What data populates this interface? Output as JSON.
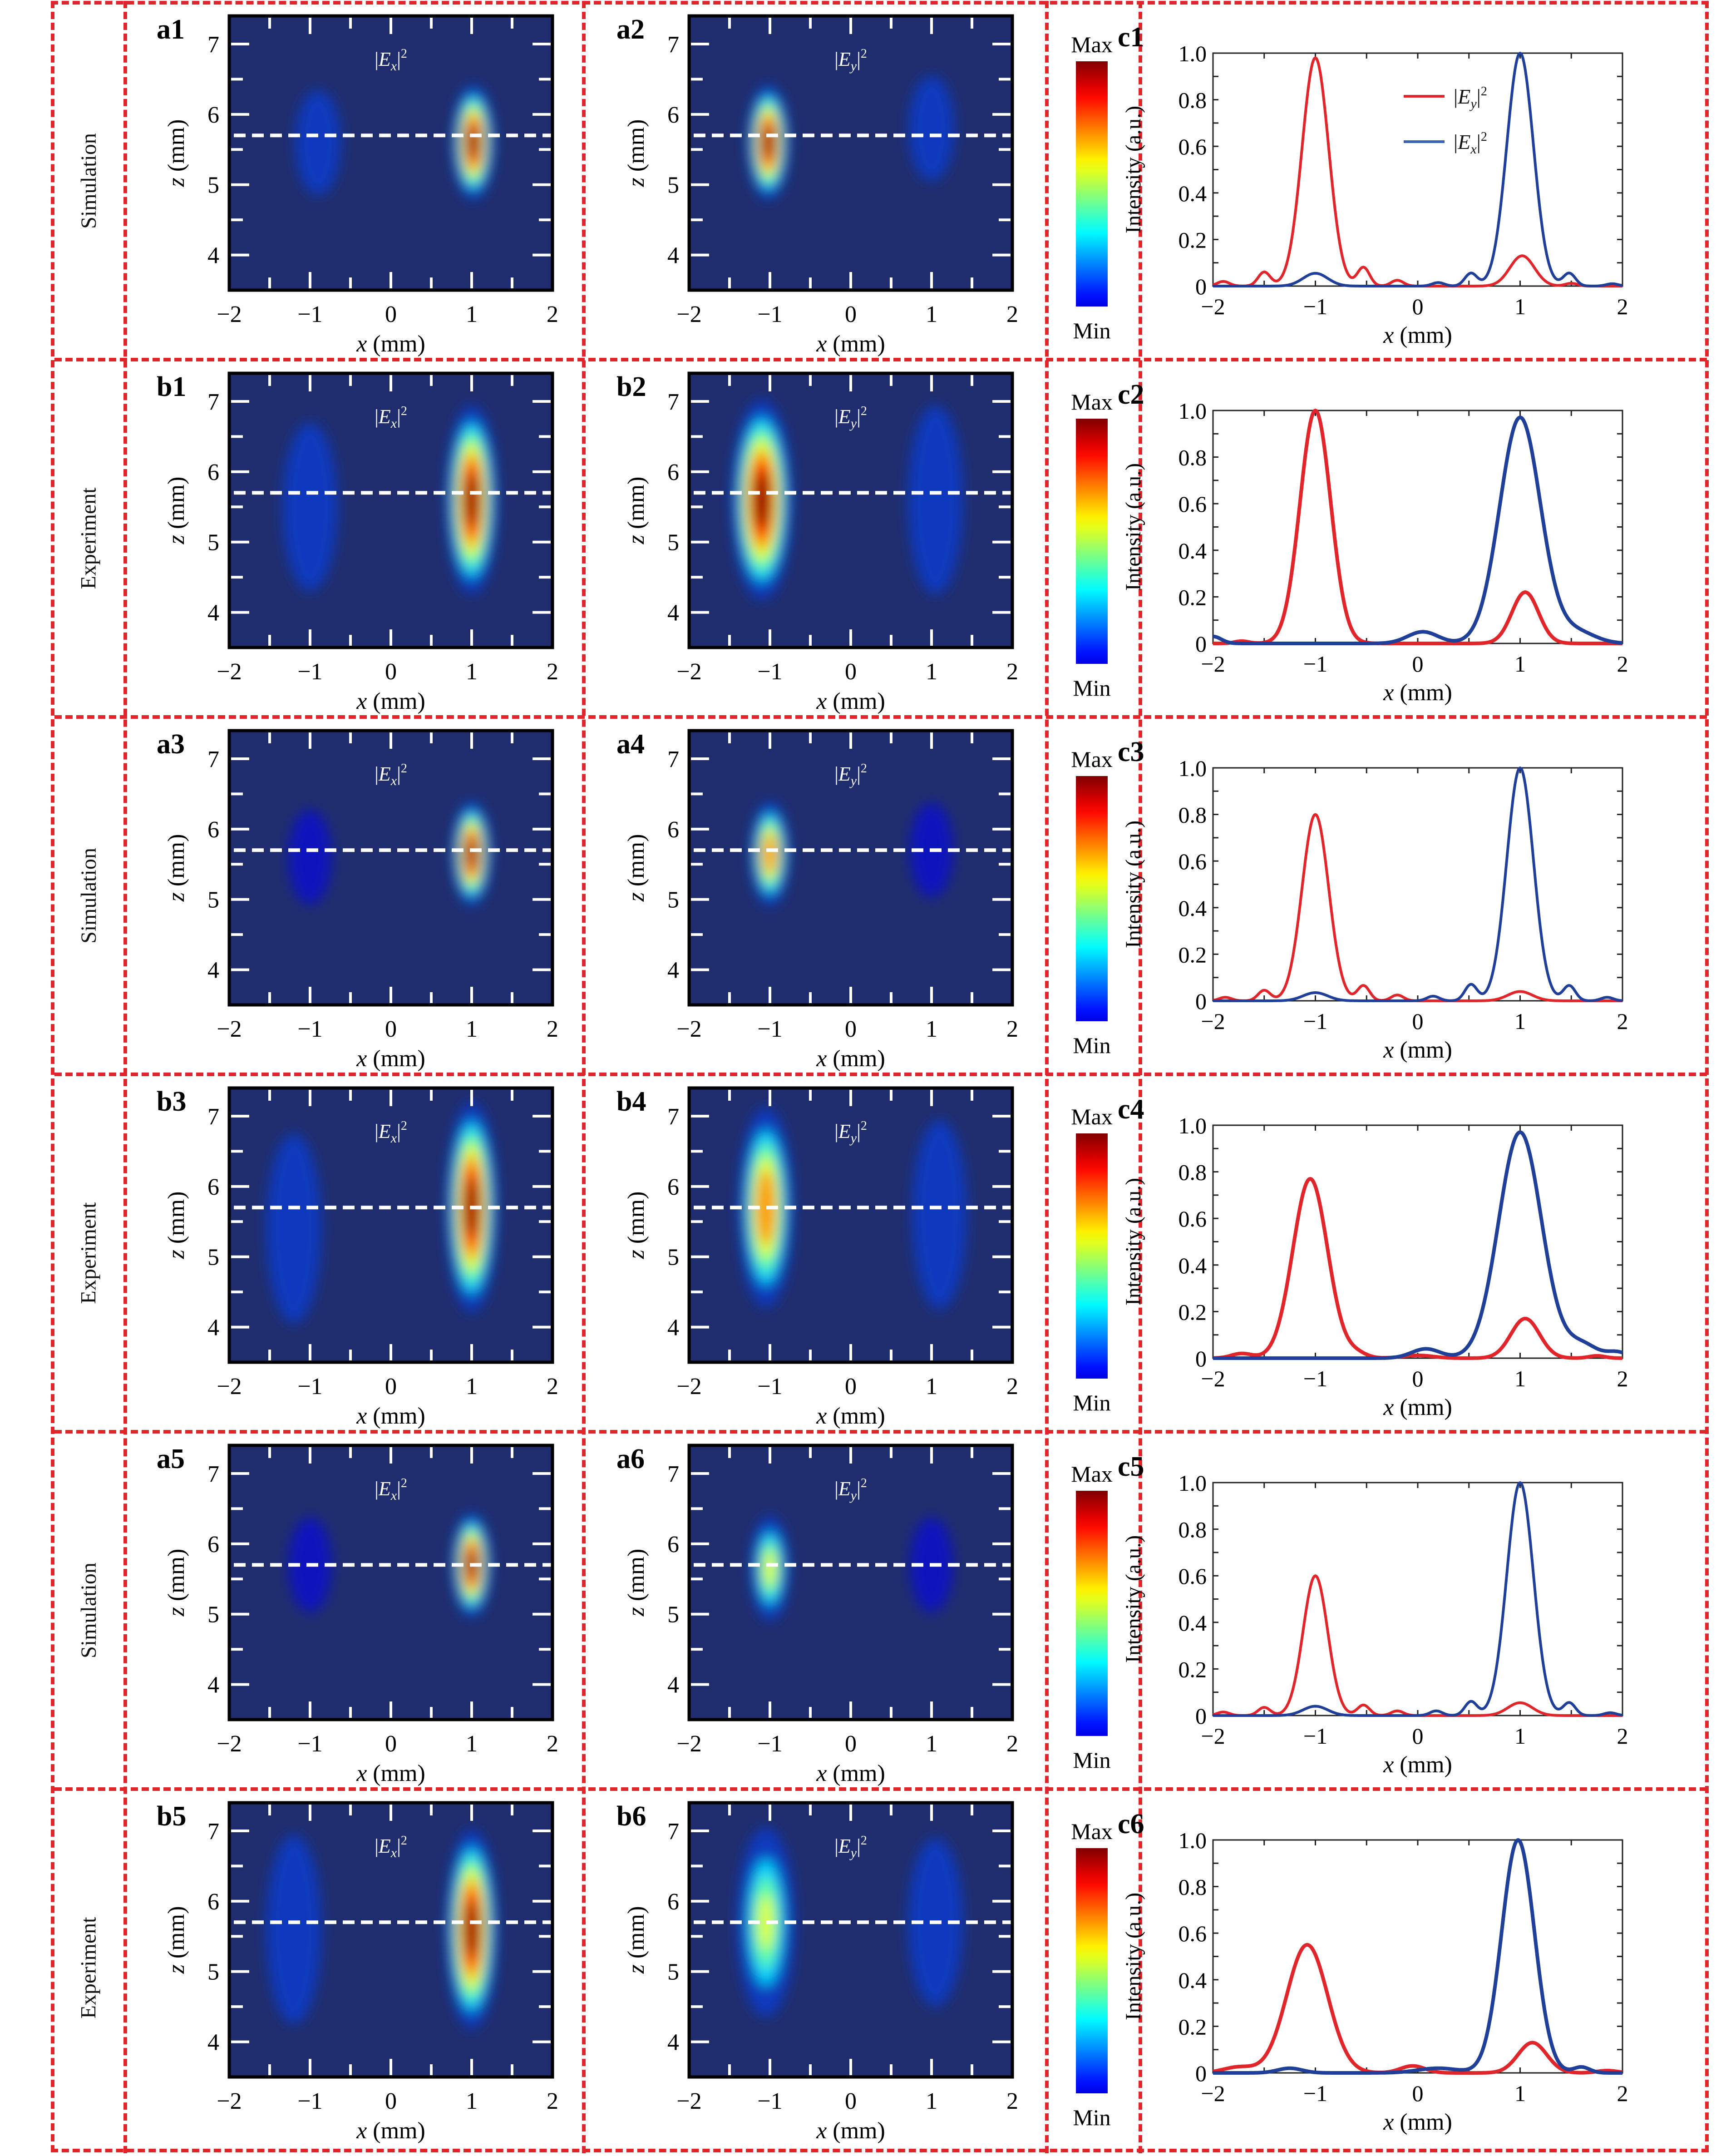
{
  "figure": {
    "rows": [
      {
        "label": "Simulation",
        "heat_ex": "a1",
        "heat_ey": "a2",
        "line": "c1"
      },
      {
        "label": "Experiment",
        "heat_ex": "b1",
        "heat_ey": "b2",
        "line": "c2"
      },
      {
        "label": "Simulation",
        "heat_ex": "a3",
        "heat_ey": "a4",
        "line": "c3"
      },
      {
        "label": "Experiment",
        "heat_ex": "b3",
        "heat_ey": "b4",
        "line": "c4"
      },
      {
        "label": "Simulation",
        "heat_ex": "a5",
        "heat_ey": "a6",
        "line": "c5"
      },
      {
        "label": "Experiment",
        "heat_ex": "b5",
        "heat_ey": "b6",
        "line": "c6"
      }
    ],
    "colorbar": {
      "max_label": "Max",
      "min_label": "Min"
    },
    "colors": {
      "border": "#e0262b",
      "ey_line": "#e0262b",
      "ex_line": "#1f3f99",
      "heat_bg": "#1f2d6e"
    }
  },
  "chart_data": [
    {
      "type": "heatmap",
      "group": "intensity maps",
      "xlabel": "x (mm)",
      "ylabel": "z (mm)",
      "xlim": [
        -2,
        2
      ],
      "ylim": [
        3.5,
        7.4
      ],
      "xticks": [
        "-2",
        "-1",
        "0",
        "1",
        "2"
      ],
      "yticks": [
        "4",
        "5",
        "6",
        "7"
      ],
      "dashed_cut_z": 5.7,
      "colormap": "jet",
      "colorbar_labels": [
        "Min",
        "Max"
      ],
      "panels": [
        {
          "id": "a1",
          "title": "|Ex|²",
          "field": "Ex",
          "source": "Simulation",
          "spots": [
            {
              "x": 1.02,
              "z": 5.6,
              "peak": 1.0,
              "sx": 0.14,
              "sz": 0.55
            },
            {
              "x": -0.9,
              "z": 5.6,
              "peak": 0.08,
              "sx": 0.15,
              "sz": 0.5
            }
          ]
        },
        {
          "id": "a2",
          "title": "|Ey|²",
          "field": "Ey",
          "source": "Simulation",
          "spots": [
            {
              "x": -1.02,
              "z": 5.6,
              "peak": 1.0,
              "sx": 0.14,
              "sz": 0.55
            },
            {
              "x": 1.0,
              "z": 5.8,
              "peak": 0.12,
              "sx": 0.15,
              "sz": 0.5
            }
          ]
        },
        {
          "id": "b1",
          "title": "|Ex|²",
          "field": "Ex",
          "source": "Experiment",
          "spots": [
            {
              "x": 1.0,
              "z": 5.6,
              "peak": 1.0,
              "sx": 0.17,
              "sz": 0.9
            },
            {
              "x": -1.0,
              "z": 5.5,
              "peak": 0.1,
              "sx": 0.18,
              "sz": 0.8
            }
          ]
        },
        {
          "id": "b2",
          "title": "|Ey|²",
          "field": "Ey",
          "source": "Experiment",
          "spots": [
            {
              "x": -1.1,
              "z": 5.6,
              "peak": 1.0,
              "sx": 0.2,
              "sz": 0.95
            },
            {
              "x": 1.05,
              "z": 5.6,
              "peak": 0.22,
              "sx": 0.18,
              "sz": 0.9
            }
          ]
        },
        {
          "id": "a3",
          "title": "|Ex|²",
          "field": "Ex",
          "source": "Simulation",
          "spots": [
            {
              "x": 1.0,
              "z": 5.65,
              "peak": 1.0,
              "sx": 0.13,
              "sz": 0.5
            },
            {
              "x": -1.0,
              "z": 5.6,
              "peak": 0.05,
              "sx": 0.14,
              "sz": 0.45
            }
          ]
        },
        {
          "id": "a4",
          "title": "|Ey|²",
          "field": "Ey",
          "source": "Simulation",
          "spots": [
            {
              "x": -1.0,
              "z": 5.65,
              "peak": 0.8,
              "sx": 0.13,
              "sz": 0.5
            },
            {
              "x": 1.0,
              "z": 5.7,
              "peak": 0.05,
              "sx": 0.14,
              "sz": 0.45
            }
          ]
        },
        {
          "id": "b3",
          "title": "|Ex|²",
          "field": "Ex",
          "source": "Experiment",
          "spots": [
            {
              "x": 1.0,
              "z": 5.7,
              "peak": 1.0,
              "sx": 0.17,
              "sz": 1.0
            },
            {
              "x": -1.2,
              "z": 5.4,
              "peak": 0.1,
              "sx": 0.18,
              "sz": 0.9
            }
          ]
        },
        {
          "id": "b4",
          "title": "|Ey|²",
          "field": "Ey",
          "source": "Experiment",
          "spots": [
            {
              "x": -1.05,
              "z": 5.7,
              "peak": 0.8,
              "sx": 0.18,
              "sz": 0.95
            },
            {
              "x": 1.1,
              "z": 5.6,
              "peak": 0.18,
              "sx": 0.18,
              "sz": 0.9
            }
          ]
        },
        {
          "id": "a5",
          "title": "|Ex|²",
          "field": "Ex",
          "source": "Simulation",
          "spots": [
            {
              "x": 1.0,
              "z": 5.7,
              "peak": 1.0,
              "sx": 0.13,
              "sz": 0.5
            },
            {
              "x": -1.0,
              "z": 5.7,
              "peak": 0.05,
              "sx": 0.14,
              "sz": 0.45
            }
          ]
        },
        {
          "id": "a6",
          "title": "|Ey|²",
          "field": "Ey",
          "source": "Simulation",
          "spots": [
            {
              "x": -1.0,
              "z": 5.65,
              "peak": 0.6,
              "sx": 0.13,
              "sz": 0.5
            },
            {
              "x": 1.0,
              "z": 5.7,
              "peak": 0.06,
              "sx": 0.14,
              "sz": 0.45
            }
          ]
        },
        {
          "id": "b5",
          "title": "|Ex|²",
          "field": "Ex",
          "source": "Experiment",
          "spots": [
            {
              "x": 1.0,
              "z": 5.6,
              "peak": 1.0,
              "sx": 0.17,
              "sz": 0.95
            },
            {
              "x": -1.2,
              "z": 5.6,
              "peak": 0.1,
              "sx": 0.18,
              "sz": 0.9
            }
          ]
        },
        {
          "id": "b6",
          "title": "|Ey|²",
          "field": "Ey",
          "source": "Experiment",
          "spots": [
            {
              "x": -1.05,
              "z": 5.7,
              "peak": 0.55,
              "sx": 0.19,
              "sz": 0.9
            },
            {
              "x": 1.05,
              "z": 5.7,
              "peak": 0.14,
              "sx": 0.18,
              "sz": 0.8
            }
          ]
        }
      ]
    },
    {
      "type": "line",
      "group": "cross-section profiles",
      "xlabel": "x (mm)",
      "ylabel": "Intensity (a.u.)",
      "xlim": [
        -2,
        2
      ],
      "ylim": [
        0,
        1.0
      ],
      "xticks": [
        "-2",
        "-1",
        "0",
        "1",
        "2"
      ],
      "yticks": [
        "0",
        "0.2",
        "0.4",
        "0.6",
        "0.8",
        "1.0"
      ],
      "legend": {
        "placement": "top-center",
        "entries": [
          "|Ey|²",
          "|Ex|²"
        ]
      },
      "panels": [
        {
          "id": "c1",
          "source": "Simulation",
          "show_legend": true,
          "series": [
            {
              "name": "|Ey|²",
              "peaks": [
                {
                  "x": -1.0,
                  "y": 0.98,
                  "w": 0.13
                },
                {
                  "x": 1.02,
                  "y": 0.13,
                  "w": 0.12
                },
                {
                  "x": -1.5,
                  "y": 0.06,
                  "w": 0.06
                },
                {
                  "x": -0.53,
                  "y": 0.08,
                  "w": 0.06
                },
                {
                  "x": -0.2,
                  "y": 0.025,
                  "w": 0.06
                },
                {
                  "x": -1.9,
                  "y": 0.02,
                  "w": 0.06
                },
                {
                  "x": 1.5,
                  "y": 0.012,
                  "w": 0.06
                }
              ]
            },
            {
              "name": "|Ex|²",
              "peaks": [
                {
                  "x": 1.0,
                  "y": 1.0,
                  "w": 0.13
                },
                {
                  "x": -1.0,
                  "y": 0.055,
                  "w": 0.12
                },
                {
                  "x": 0.52,
                  "y": 0.055,
                  "w": 0.06
                },
                {
                  "x": 1.48,
                  "y": 0.055,
                  "w": 0.06
                },
                {
                  "x": 0.2,
                  "y": 0.015,
                  "w": 0.06
                },
                {
                  "x": 1.9,
                  "y": 0.01,
                  "w": 0.06
                }
              ]
            }
          ]
        },
        {
          "id": "c2",
          "source": "Experiment",
          "show_legend": false,
          "series": [
            {
              "name": "|Ey|²",
              "peaks": [
                {
                  "x": -1.0,
                  "y": 1.0,
                  "w": 0.15
                },
                {
                  "x": 1.05,
                  "y": 0.22,
                  "w": 0.13
                },
                {
                  "x": -1.72,
                  "y": 0.01,
                  "w": 0.07
                }
              ]
            },
            {
              "name": "|Ex|²",
              "peaks": [
                {
                  "x": 1.0,
                  "y": 0.97,
                  "w": 0.2
                },
                {
                  "x": 0.05,
                  "y": 0.05,
                  "w": 0.15
                },
                {
                  "x": 1.55,
                  "y": 0.05,
                  "w": 0.18
                },
                {
                  "x": -2.0,
                  "y": 0.03,
                  "w": 0.08
                }
              ]
            }
          ]
        },
        {
          "id": "c3",
          "source": "Simulation",
          "show_legend": false,
          "series": [
            {
              "name": "|Ey|²",
              "peaks": [
                {
                  "x": -1.0,
                  "y": 0.8,
                  "w": 0.13
                },
                {
                  "x": 1.0,
                  "y": 0.04,
                  "w": 0.12
                },
                {
                  "x": -1.5,
                  "y": 0.045,
                  "w": 0.06
                },
                {
                  "x": -0.53,
                  "y": 0.065,
                  "w": 0.06
                },
                {
                  "x": -0.2,
                  "y": 0.025,
                  "w": 0.06
                },
                {
                  "x": -1.88,
                  "y": 0.015,
                  "w": 0.06
                }
              ]
            },
            {
              "name": "|Ex|²",
              "peaks": [
                {
                  "x": 1.0,
                  "y": 1.0,
                  "w": 0.13
                },
                {
                  "x": -1.0,
                  "y": 0.035,
                  "w": 0.12
                },
                {
                  "x": 0.52,
                  "y": 0.07,
                  "w": 0.06
                },
                {
                  "x": 1.48,
                  "y": 0.065,
                  "w": 0.06
                },
                {
                  "x": 0.15,
                  "y": 0.02,
                  "w": 0.06
                },
                {
                  "x": 1.85,
                  "y": 0.015,
                  "w": 0.06
                }
              ]
            }
          ]
        },
        {
          "id": "c4",
          "source": "Experiment",
          "show_legend": false,
          "series": [
            {
              "name": "|Ey|²",
              "peaks": [
                {
                  "x": -1.05,
                  "y": 0.77,
                  "w": 0.17
                },
                {
                  "x": 1.05,
                  "y": 0.17,
                  "w": 0.14
                },
                {
                  "x": -1.72,
                  "y": 0.02,
                  "w": 0.1
                },
                {
                  "x": -0.6,
                  "y": 0.02,
                  "w": 0.1
                },
                {
                  "x": 0.0,
                  "y": 0.012,
                  "w": 0.15
                },
                {
                  "x": 1.75,
                  "y": 0.01,
                  "w": 0.08
                }
              ]
            },
            {
              "name": "|Ex|²",
              "peaks": [
                {
                  "x": 1.0,
                  "y": 0.97,
                  "w": 0.21
                },
                {
                  "x": 0.08,
                  "y": 0.04,
                  "w": 0.14
                },
                {
                  "x": 1.6,
                  "y": 0.06,
                  "w": 0.15
                },
                {
                  "x": 1.95,
                  "y": 0.025,
                  "w": 0.1
                }
              ]
            }
          ]
        },
        {
          "id": "c5",
          "source": "Simulation",
          "show_legend": false,
          "series": [
            {
              "name": "|Ey|²",
              "peaks": [
                {
                  "x": -1.0,
                  "y": 0.6,
                  "w": 0.12
                },
                {
                  "x": 1.0,
                  "y": 0.055,
                  "w": 0.12
                },
                {
                  "x": -1.5,
                  "y": 0.035,
                  "w": 0.06
                },
                {
                  "x": -0.53,
                  "y": 0.045,
                  "w": 0.06
                },
                {
                  "x": -0.2,
                  "y": 0.02,
                  "w": 0.06
                },
                {
                  "x": -1.9,
                  "y": 0.015,
                  "w": 0.06
                }
              ]
            },
            {
              "name": "|Ex|²",
              "peaks": [
                {
                  "x": 1.0,
                  "y": 1.0,
                  "w": 0.13
                },
                {
                  "x": -1.0,
                  "y": 0.04,
                  "w": 0.12
                },
                {
                  "x": 0.52,
                  "y": 0.06,
                  "w": 0.06
                },
                {
                  "x": 1.48,
                  "y": 0.055,
                  "w": 0.06
                },
                {
                  "x": 0.18,
                  "y": 0.02,
                  "w": 0.06
                },
                {
                  "x": 1.88,
                  "y": 0.012,
                  "w": 0.06
                }
              ]
            }
          ]
        },
        {
          "id": "c6",
          "source": "Experiment",
          "show_legend": false,
          "series": [
            {
              "name": "|Ey|²",
              "peaks": [
                {
                  "x": -1.08,
                  "y": 0.55,
                  "w": 0.2
                },
                {
                  "x": 1.12,
                  "y": 0.13,
                  "w": 0.14
                },
                {
                  "x": -1.75,
                  "y": 0.025,
                  "w": 0.15
                },
                {
                  "x": -0.05,
                  "y": 0.03,
                  "w": 0.12
                },
                {
                  "x": 1.85,
                  "y": 0.01,
                  "w": 0.1
                }
              ]
            },
            {
              "name": "|Ex|²",
              "peaks": [
                {
                  "x": 0.98,
                  "y": 1.0,
                  "w": 0.16
                },
                {
                  "x": -1.25,
                  "y": 0.02,
                  "w": 0.12
                },
                {
                  "x": 0.2,
                  "y": 0.02,
                  "w": 0.2
                },
                {
                  "x": 1.6,
                  "y": 0.025,
                  "w": 0.08
                }
              ]
            }
          ]
        }
      ]
    }
  ]
}
